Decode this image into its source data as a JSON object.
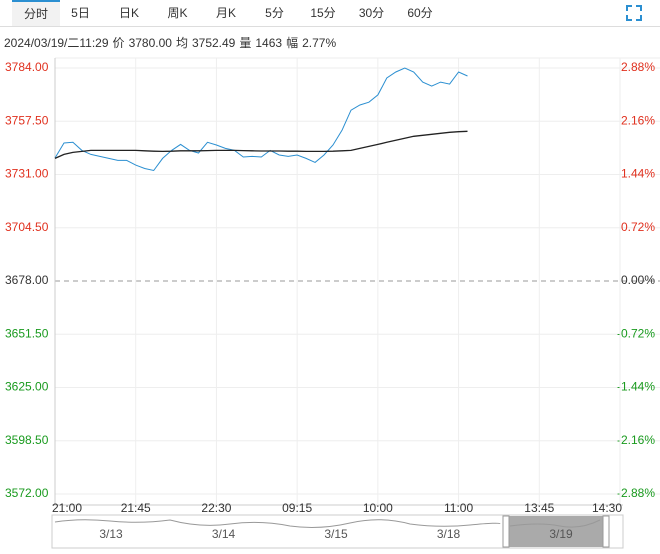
{
  "tabs": [
    "分时",
    "5日",
    "日K",
    "周K",
    "月K",
    "5分",
    "15分",
    "30分",
    "60分"
  ],
  "active_tab": 0,
  "navigator": {
    "dates": [
      "3/13",
      "3/14",
      "3/15",
      "3/18",
      "3/19"
    ]
  },
  "chart_data": {
    "type": "line",
    "info": {
      "time": "2024/03/19/二11:29",
      "items": [
        {
          "label": "价",
          "value": "3780.00"
        },
        {
          "label": "均",
          "value": "3752.49"
        },
        {
          "label": "量",
          "value": "1463"
        },
        {
          "label": "幅",
          "value": "2.77%"
        }
      ]
    },
    "categories": [
      "21:00",
      "21:05",
      "21:10",
      "21:15",
      "21:20",
      "21:25",
      "21:30",
      "21:35",
      "21:40",
      "21:45",
      "21:50",
      "21:55",
      "22:00",
      "22:05",
      "22:10",
      "22:15",
      "22:20",
      "22:25",
      "22:30",
      "22:35",
      "22:40",
      "22:45",
      "22:50",
      "22:55",
      "23:00",
      "09:05",
      "09:10",
      "09:15",
      "09:20",
      "09:25",
      "09:30",
      "09:35",
      "09:40",
      "09:45",
      "09:50",
      "09:55",
      "10:00",
      "10:05",
      "10:10",
      "10:15",
      "10:35",
      "10:40",
      "10:45",
      "10:50",
      "10:55",
      "11:00",
      "11:05",
      "11:10",
      "11:15",
      "11:20",
      "11:25",
      "11:30",
      "13:35",
      "13:40",
      "13:45",
      "13:50",
      "13:55",
      "14:00",
      "14:05",
      "14:10",
      "14:15",
      "14:20",
      "14:25",
      "14:30"
    ],
    "series": [
      {
        "name": "价",
        "color": "#2b8fd1",
        "values": [
          3739.2,
          3746.7,
          3747,
          3743,
          3741,
          3740,
          3739,
          3738,
          3738,
          3735.7,
          3734,
          3733,
          3739,
          3743,
          3746,
          3743,
          3741.7,
          3747,
          3745.7,
          3744,
          3743,
          3739.7,
          3740,
          3739.7,
          3743,
          3740.7,
          3740,
          3740.7,
          3739,
          3737,
          3740.7,
          3745.7,
          3753,
          3763,
          3765.6,
          3767,
          3770.6,
          3779,
          3782,
          3784,
          3782,
          3777,
          3775,
          3777,
          3776,
          3782,
          3780,
          null,
          null,
          null,
          null,
          null,
          null,
          null,
          null,
          null,
          null,
          null,
          null,
          null,
          null,
          null,
          null,
          null
        ]
      },
      {
        "name": "均",
        "color": "#222222",
        "values": [
          3739,
          3741,
          3742,
          3742.5,
          3743,
          3743,
          3743,
          3743,
          3743,
          3743,
          3742.8,
          3742.6,
          3742.5,
          3742.6,
          3742.8,
          3742.8,
          3742.8,
          3742.9,
          3743,
          3743,
          3743,
          3742.9,
          3742.8,
          3742.7,
          3742.7,
          3742.7,
          3742.6,
          3742.6,
          3742.5,
          3742.5,
          3742.5,
          3742.6,
          3742.8,
          3743,
          3744,
          3745,
          3746,
          3747,
          3748,
          3749,
          3750,
          3750.5,
          3751,
          3751.5,
          3752,
          3752.3,
          3752.5,
          null,
          null,
          null,
          null,
          null,
          null,
          null,
          null,
          null,
          null,
          null,
          null,
          null,
          null,
          null,
          null,
          null
        ]
      }
    ],
    "ylim": [
      3572,
      3784
    ],
    "yticks": [
      {
        "value": 3784,
        "label": "3784.00"
      },
      {
        "value": 3757.5,
        "label": "3757.50"
      },
      {
        "value": 3731,
        "label": "3731.00"
      },
      {
        "value": 3704.5,
        "label": "3704.50"
      },
      {
        "value": 3678,
        "label": "3678.00"
      },
      {
        "value": 3651.5,
        "label": "3651.50"
      },
      {
        "value": 3625,
        "label": "3625.00"
      },
      {
        "value": 3598.5,
        "label": "3598.50"
      },
      {
        "value": 3572,
        "label": "3572.00"
      }
    ],
    "y2lim": [
      -2.88,
      2.88
    ],
    "y2ticks": [
      {
        "value": 2.88,
        "label": "2.88%"
      },
      {
        "value": 2.16,
        "label": "2.16%"
      },
      {
        "value": 1.44,
        "label": "1.44%"
      },
      {
        "value": 0.72,
        "label": "0.72%"
      },
      {
        "value": 0,
        "label": "0.00%"
      },
      {
        "value": -0.72,
        "label": "-0.72%"
      },
      {
        "value": -1.44,
        "label": "-1.44%"
      },
      {
        "value": -2.16,
        "label": "-2.16%"
      },
      {
        "value": -2.88,
        "label": "-2.88%"
      }
    ],
    "xticks": [
      "21:00",
      "21:45",
      "22:30",
      "09:15",
      "10:00",
      "11:00",
      "13:45",
      "14:30"
    ],
    "up_color": "#e0301e",
    "down_color": "#199a1e",
    "flat_color": "#333333",
    "grid": true
  }
}
